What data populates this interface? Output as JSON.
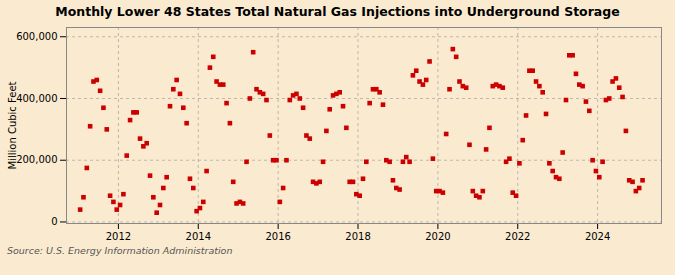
{
  "chart_data": {
    "type": "scatter",
    "title": "Monthly Lower 48 States Total Natural Gas Injections into Underground Storage",
    "ylabel": "Million Cubic Feet",
    "caption": "Source: U.S. Energy Information Administration",
    "color": "#cc0000",
    "marker": "square",
    "grid": true,
    "xlim": [
      2010.7,
      2025.6
    ],
    "ylim": [
      -5000,
      630000
    ],
    "xticks": [
      2012,
      2014,
      2016,
      2018,
      2020,
      2022,
      2024
    ],
    "yticks": [
      0,
      {
        "value": 200000,
        "label": "200,000"
      },
      {
        "value": 400000,
        "label": "400,000"
      },
      {
        "value": 600000,
        "label": "600,000"
      }
    ],
    "x": [
      2011.0417,
      2011.125,
      2011.2083,
      2011.2917,
      2011.375,
      2011.4583,
      2011.5417,
      2011.625,
      2011.7083,
      2011.7917,
      2011.875,
      2011.9583,
      2012.0417,
      2012.125,
      2012.2083,
      2012.2917,
      2012.375,
      2012.4583,
      2012.5417,
      2012.625,
      2012.7083,
      2012.7917,
      2012.875,
      2012.9583,
      2013.0417,
      2013.125,
      2013.2083,
      2013.2917,
      2013.375,
      2013.4583,
      2013.5417,
      2013.625,
      2013.7083,
      2013.7917,
      2013.875,
      2013.9583,
      2014.0417,
      2014.125,
      2014.2083,
      2014.2917,
      2014.375,
      2014.4583,
      2014.5417,
      2014.625,
      2014.7083,
      2014.7917,
      2014.875,
      2014.9583,
      2015.0417,
      2015.125,
      2015.2083,
      2015.2917,
      2015.375,
      2015.4583,
      2015.5417,
      2015.625,
      2015.7083,
      2015.7917,
      2015.875,
      2015.9583,
      2016.0417,
      2016.125,
      2016.2083,
      2016.2917,
      2016.375,
      2016.4583,
      2016.5417,
      2016.625,
      2016.7083,
      2016.7917,
      2016.875,
      2016.9583,
      2017.0417,
      2017.125,
      2017.2083,
      2017.2917,
      2017.375,
      2017.4583,
      2017.5417,
      2017.625,
      2017.7083,
      2017.7917,
      2017.875,
      2017.9583,
      2018.0417,
      2018.125,
      2018.2083,
      2018.2917,
      2018.375,
      2018.4583,
      2018.5417,
      2018.625,
      2018.7083,
      2018.7917,
      2018.875,
      2018.9583,
      2019.0417,
      2019.125,
      2019.2083,
      2019.2917,
      2019.375,
      2019.4583,
      2019.5417,
      2019.625,
      2019.7083,
      2019.7917,
      2019.875,
      2019.9583,
      2020.0417,
      2020.125,
      2020.2083,
      2020.2917,
      2020.375,
      2020.4583,
      2020.5417,
      2020.625,
      2020.7083,
      2020.7917,
      2020.875,
      2020.9583,
      2021.0417,
      2021.125,
      2021.2083,
      2021.2917,
      2021.375,
      2021.4583,
      2021.5417,
      2021.625,
      2021.7083,
      2021.7917,
      2021.875,
      2021.9583,
      2022.0417,
      2022.125,
      2022.2083,
      2022.2917,
      2022.375,
      2022.4583,
      2022.5417,
      2022.625,
      2022.7083,
      2022.7917,
      2022.875,
      2022.9583,
      2023.0417,
      2023.125,
      2023.2083,
      2023.2917,
      2023.375,
      2023.4583,
      2023.5417,
      2023.625,
      2023.7083,
      2023.7917,
      2023.875,
      2023.9583,
      2024.0417,
      2024.125,
      2024.2083,
      2024.2917,
      2024.375,
      2024.4583,
      2024.5417,
      2024.625,
      2024.7083,
      2024.7917,
      2024.875,
      2024.9583,
      2025.0417,
      2025.125
    ],
    "values": [
      40000,
      80000,
      175000,
      310000,
      455000,
      460000,
      425000,
      370000,
      300000,
      85000,
      65000,
      40000,
      55000,
      90000,
      215000,
      330000,
      355000,
      355000,
      270000,
      245000,
      255000,
      150000,
      80000,
      30000,
      55000,
      110000,
      145000,
      375000,
      430000,
      460000,
      415000,
      370000,
      320000,
      140000,
      110000,
      35000,
      45000,
      65000,
      165000,
      500000,
      535000,
      455000,
      445000,
      445000,
      385000,
      320000,
      130000,
      60000,
      65000,
      60000,
      195000,
      400000,
      550000,
      430000,
      420000,
      415000,
      395000,
      280000,
      200000,
      200000,
      65000,
      110000,
      200000,
      395000,
      410000,
      415000,
      400000,
      370000,
      280000,
      270000,
      130000,
      125000,
      130000,
      195000,
      295000,
      365000,
      410000,
      415000,
      420000,
      375000,
      305000,
      130000,
      130000,
      90000,
      85000,
      140000,
      195000,
      385000,
      430000,
      430000,
      420000,
      380000,
      200000,
      195000,
      135000,
      110000,
      105000,
      195000,
      210000,
      195000,
      475000,
      490000,
      455000,
      445000,
      460000,
      520000,
      205000,
      100000,
      100000,
      95000,
      285000,
      430000,
      560000,
      535000,
      455000,
      440000,
      435000,
      250000,
      100000,
      85000,
      80000,
      100000,
      235000,
      305000,
      440000,
      445000,
      440000,
      435000,
      195000,
      205000,
      95000,
      85000,
      190000,
      265000,
      345000,
      490000,
      490000,
      455000,
      440000,
      420000,
      350000,
      190000,
      165000,
      145000,
      140000,
      225000,
      395000,
      540000,
      540000,
      480000,
      445000,
      440000,
      390000,
      360000,
      200000,
      165000,
      145000,
      195000,
      395000,
      400000,
      455000,
      465000,
      435000,
      405000,
      295000,
      135000,
      130000,
      100000,
      110000,
      135000
    ]
  }
}
